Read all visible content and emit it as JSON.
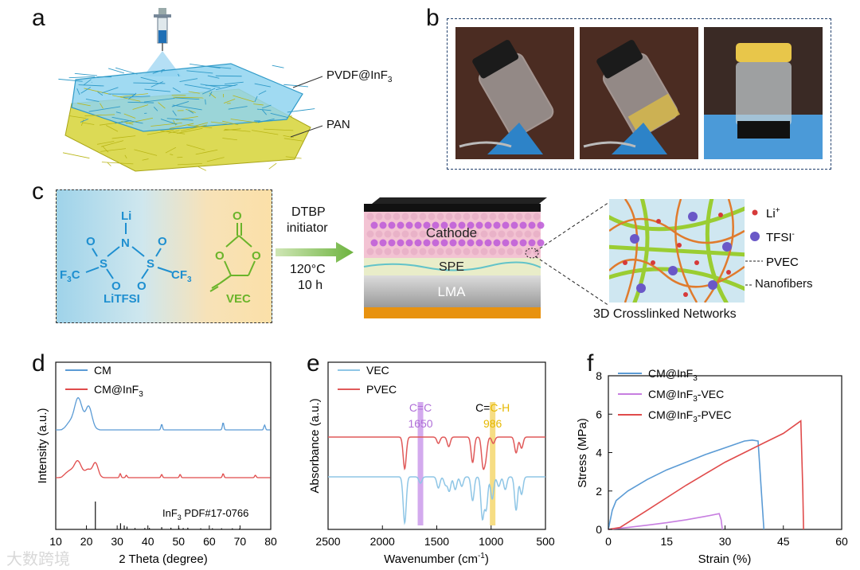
{
  "panels": {
    "a": "a",
    "b": "b",
    "c": "c",
    "d": "d",
    "e": "e",
    "f": "f"
  },
  "panel_a": {
    "top_label": "PVDF@InF",
    "top_sub": "3",
    "bottom_label": "PAN"
  },
  "panel_c": {
    "litfsi": {
      "li": "Li",
      "n": "N",
      "s": "S",
      "o": "O",
      "c": "C",
      "f": "F",
      "sub3": "3",
      "name": "LiTFSI"
    },
    "vec": {
      "o": "O",
      "name": "VEC"
    },
    "reaction": {
      "line1": "DTBP",
      "line2": "initiator",
      "line3": "120°C",
      "line4": "10 h"
    },
    "battery": {
      "cathode": "Cathode",
      "spe": "SPE",
      "lma": "LMA"
    },
    "network": {
      "li": "Li",
      "li_sup": "+",
      "tfsi": "TFSI",
      "tfsi_sup": "-",
      "pvec": "PVEC",
      "nanofibers": "Nanofibers",
      "caption": "3D Crosslinked Networks"
    }
  },
  "colors": {
    "blue": "#5b9bd5",
    "red": "#e04b4b",
    "light_blue": "#8fc6e6",
    "purple": "#c77ee0",
    "salmon": "#e05a5a",
    "violet_band": "#c48ee8",
    "yellow_band": "#f5d76e"
  },
  "watermark": "大数跨境",
  "chart_data": [
    {
      "panel": "d",
      "type": "line",
      "xlabel": "2 Theta (degree)",
      "ylabel": "Intensity (a.u.)",
      "xlim": [
        10,
        80
      ],
      "xticks": [
        "10",
        "20",
        "30",
        "40",
        "50",
        "60",
        "70",
        "80"
      ],
      "legend": [
        {
          "name": "CM"
        },
        {
          "name": "CM@InF",
          "sub": "3"
        }
      ],
      "reference": {
        "label": "InF",
        "sub": "3",
        "suffix": " PDF#17-0766",
        "peaks": [
          [
            22.9,
            1.0
          ],
          [
            31.1,
            0.22
          ],
          [
            32.3,
            0.14
          ],
          [
            33.2,
            0.1
          ],
          [
            35.8,
            0.05
          ],
          [
            39.0,
            0.05
          ],
          [
            40.5,
            0.05
          ],
          [
            44.5,
            0.08
          ],
          [
            47.5,
            0.06
          ],
          [
            50.1,
            0.06
          ],
          [
            51.5,
            0.05
          ],
          [
            53.0,
            0.06
          ],
          [
            57.2,
            0.04
          ],
          [
            61.0,
            0.04
          ],
          [
            64.0,
            0.04
          ],
          [
            67.5,
            0.04
          ],
          [
            69.8,
            0.03
          ]
        ]
      },
      "series": [
        {
          "name": "CM",
          "peaks": [
            [
              14,
              5
            ],
            [
              15.5,
              9
            ],
            [
              17,
              28
            ],
            [
              18.3,
              18
            ],
            [
              20.5,
              22
            ],
            [
              21.5,
              9
            ],
            [
              44.5,
              7
            ],
            [
              64.5,
              9
            ],
            [
              78,
              6
            ]
          ]
        },
        {
          "name": "CM@InF3",
          "peaks": [
            [
              13.5,
              4
            ],
            [
              15,
              6
            ],
            [
              16.8,
              14
            ],
            [
              18,
              8
            ],
            [
              20.5,
              8
            ],
            [
              22.9,
              18
            ],
            [
              31,
              5
            ],
            [
              33,
              3
            ],
            [
              44.5,
              4
            ],
            [
              50.5,
              4
            ],
            [
              64.5,
              5
            ],
            [
              75,
              3
            ]
          ]
        }
      ]
    },
    {
      "panel": "e",
      "type": "line",
      "xlabel": "Wavenumber (cm",
      "xlabel_sup": "-1",
      "xlabel_end": ")",
      "ylabel": "Absorbance (a.u.)",
      "xlim": [
        2500,
        500
      ],
      "xticks": [
        "2500",
        "2000",
        "1500",
        "1000",
        "500"
      ],
      "legend": [
        {
          "name": "VEC"
        },
        {
          "name": "PVEC"
        }
      ],
      "annotations": [
        {
          "label": "C=C",
          "value": "1650"
        },
        {
          "label_a": "C=",
          "label_b": "C-H",
          "value": "986"
        }
      ],
      "series": [
        {
          "name": "VEC",
          "dips": [
            [
              1795,
              58
            ],
            [
              1650,
              8
            ],
            [
              1485,
              14
            ],
            [
              1420,
              10
            ],
            [
              1385,
              18
            ],
            [
              1330,
              16
            ],
            [
              1270,
              12
            ],
            [
              1170,
              30
            ],
            [
              1080,
              52
            ],
            [
              1045,
              40
            ],
            [
              990,
              28
            ],
            [
              930,
              12
            ],
            [
              870,
              16
            ],
            [
              770,
              42
            ],
            [
              720,
              22
            ]
          ]
        },
        {
          "name": "PVEC",
          "dips": [
            [
              1795,
              40
            ],
            [
              1485,
              8
            ],
            [
              1390,
              12
            ],
            [
              1170,
              32
            ],
            [
              1075,
              34
            ],
            [
              1050,
              24
            ],
            [
              980,
              8
            ],
            [
              770,
              20
            ],
            [
              720,
              14
            ]
          ]
        }
      ]
    },
    {
      "panel": "f",
      "type": "line",
      "xlabel": "Strain (%)",
      "ylabel": "Stress (MPa)",
      "xlim": [
        0,
        60
      ],
      "ylim": [
        0,
        8
      ],
      "xticks": [
        "0",
        "15",
        "30",
        "45",
        "60"
      ],
      "yticks": [
        "0",
        "2",
        "4",
        "6",
        "8"
      ],
      "legend": [
        {
          "name": "CM@InF",
          "sub": "3"
        },
        {
          "name": "CM@InF",
          "sub": "3",
          "suffix": "-VEC"
        },
        {
          "name": "CM@InF",
          "sub": "3",
          "suffix": "-PVEC"
        }
      ],
      "series": [
        {
          "name": "CM@InF3",
          "x": [
            0,
            1,
            2,
            5,
            10,
            15,
            20,
            25,
            30,
            35,
            37,
            38.5,
            39.5,
            40
          ],
          "y": [
            0,
            1.0,
            1.5,
            2.0,
            2.6,
            3.1,
            3.5,
            3.9,
            4.25,
            4.6,
            4.65,
            4.6,
            1.5,
            0
          ]
        },
        {
          "name": "CM@InF3-VEC",
          "x": [
            0,
            5,
            10,
            15,
            20,
            25,
            28.5,
            29,
            29.3
          ],
          "y": [
            0,
            0.1,
            0.22,
            0.35,
            0.5,
            0.68,
            0.82,
            0.5,
            0
          ]
        },
        {
          "name": "CM@InF3-PVEC",
          "x": [
            0,
            3,
            10,
            20,
            30,
            40,
            45,
            49.5,
            50,
            50.2
          ],
          "y": [
            0,
            0.1,
            1.0,
            2.3,
            3.5,
            4.5,
            5.0,
            5.65,
            2,
            0
          ]
        }
      ]
    }
  ]
}
